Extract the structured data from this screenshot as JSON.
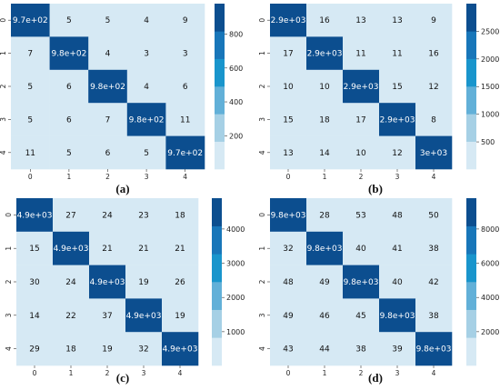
{
  "colors": {
    "cmap": [
      "#d6e9f4",
      "#a6d0e5",
      "#62b0d8",
      "#1995cc",
      "#1876b9",
      "#0c4e8f"
    ],
    "text_dark": "#111111",
    "text_light": "#ffffff"
  },
  "chart_data": [
    {
      "type": "heatmap",
      "label": "(a)",
      "x_ticks": [
        "0",
        "1",
        "2",
        "3",
        "4"
      ],
      "y_ticks": [
        "0",
        "1",
        "2",
        "3",
        "4"
      ],
      "values": [
        [
          970,
          5,
          5,
          4,
          9
        ],
        [
          7,
          980,
          4,
          3,
          3
        ],
        [
          5,
          6,
          980,
          4,
          6
        ],
        [
          5,
          6,
          7,
          980,
          11
        ],
        [
          11,
          5,
          6,
          5,
          970
        ]
      ],
      "cell_labels": [
        [
          "9.7e+02",
          "5",
          "5",
          "4",
          "9"
        ],
        [
          "7",
          "9.8e+02",
          "4",
          "3",
          "3"
        ],
        [
          "5",
          "6",
          "9.8e+02",
          "4",
          "6"
        ],
        [
          "5",
          "6",
          "7",
          "9.8e+02",
          "11"
        ],
        [
          "11",
          "5",
          "6",
          "5",
          "9.7e+02"
        ]
      ],
      "colorbar_ticks": [
        200,
        400,
        600,
        800
      ],
      "colorbar_range": [
        3,
        980
      ]
    },
    {
      "type": "heatmap",
      "label": "(b)",
      "x_ticks": [
        "0",
        "1",
        "2",
        "3",
        "4"
      ],
      "y_ticks": [
        "0",
        "1",
        "2",
        "3",
        "4"
      ],
      "values": [
        [
          2900,
          16,
          13,
          13,
          9
        ],
        [
          17,
          2900,
          11,
          11,
          16
        ],
        [
          10,
          10,
          2900,
          15,
          12
        ],
        [
          15,
          18,
          17,
          2900,
          8
        ],
        [
          13,
          14,
          10,
          12,
          3000
        ]
      ],
      "cell_labels": [
        [
          "2.9e+03",
          "16",
          "13",
          "13",
          "9"
        ],
        [
          "17",
          "2.9e+03",
          "11",
          "11",
          "16"
        ],
        [
          "10",
          "10",
          "2.9e+03",
          "15",
          "12"
        ],
        [
          "15",
          "18",
          "17",
          "2.9e+03",
          "8"
        ],
        [
          "13",
          "14",
          "10",
          "12",
          "3e+03"
        ]
      ],
      "colorbar_ticks": [
        500,
        1000,
        1500,
        2000,
        2500
      ],
      "colorbar_range": [
        8,
        3000
      ]
    },
    {
      "type": "heatmap",
      "label": "(c)",
      "x_ticks": [
        "0",
        "1",
        "2",
        "3",
        "4"
      ],
      "y_ticks": [
        "0",
        "1",
        "2",
        "3",
        "4"
      ],
      "values": [
        [
          4900,
          27,
          24,
          23,
          18
        ],
        [
          15,
          4900,
          21,
          21,
          21
        ],
        [
          30,
          24,
          4900,
          19,
          26
        ],
        [
          14,
          22,
          37,
          4900,
          19
        ],
        [
          29,
          18,
          19,
          32,
          4900
        ]
      ],
      "cell_labels": [
        [
          "4.9e+03",
          "27",
          "24",
          "23",
          "18"
        ],
        [
          "15",
          "4.9e+03",
          "21",
          "21",
          "21"
        ],
        [
          "30",
          "24",
          "4.9e+03",
          "19",
          "26"
        ],
        [
          "14",
          "22",
          "37",
          "4.9e+03",
          "19"
        ],
        [
          "29",
          "18",
          "19",
          "32",
          "4.9e+03"
        ]
      ],
      "colorbar_ticks": [
        1000,
        2000,
        3000,
        4000
      ],
      "colorbar_range": [
        14,
        4900
      ]
    },
    {
      "type": "heatmap",
      "label": "(d)",
      "x_ticks": [
        "0",
        "1",
        "2",
        "3",
        "4"
      ],
      "y_ticks": [
        "0",
        "1",
        "2",
        "3",
        "4"
      ],
      "values": [
        [
          9800,
          28,
          53,
          48,
          50
        ],
        [
          32,
          9800,
          40,
          41,
          38
        ],
        [
          48,
          49,
          9800,
          40,
          42
        ],
        [
          49,
          46,
          45,
          9800,
          38
        ],
        [
          43,
          44,
          38,
          39,
          9800
        ]
      ],
      "cell_labels": [
        [
          "9.8e+03",
          "28",
          "53",
          "48",
          "50"
        ],
        [
          "32",
          "9.8e+03",
          "40",
          "41",
          "38"
        ],
        [
          "48",
          "49",
          "9.8e+03",
          "40",
          "42"
        ],
        [
          "49",
          "46",
          "45",
          "9.8e+03",
          "38"
        ],
        [
          "43",
          "44",
          "38",
          "39",
          "9.8e+03"
        ]
      ],
      "colorbar_ticks": [
        2000,
        4000,
        6000,
        8000
      ],
      "colorbar_range": [
        28,
        9800
      ]
    }
  ]
}
